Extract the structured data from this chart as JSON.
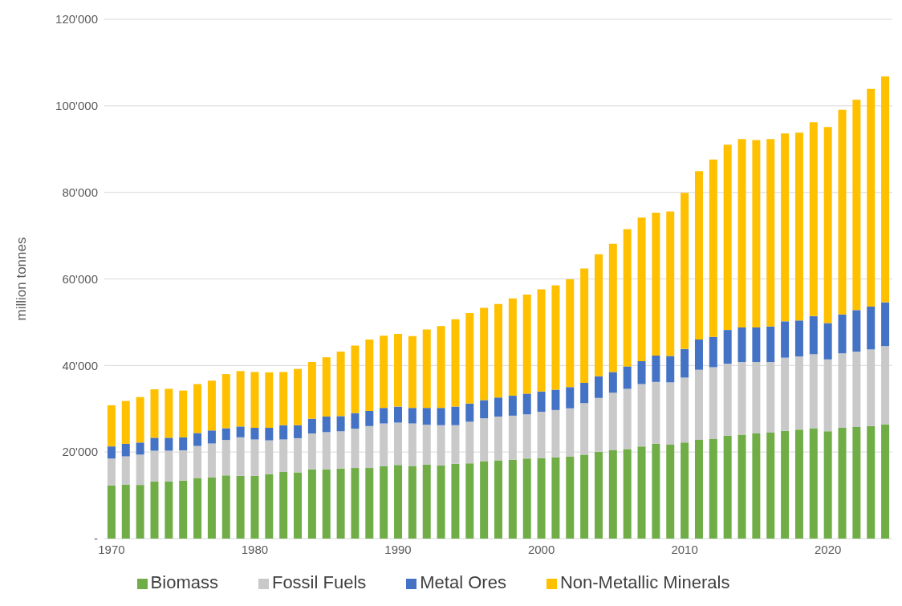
{
  "chart_data": {
    "type": "bar",
    "stacked": true,
    "ylabel": "million tonnes",
    "categories": [
      "1970",
      null,
      null,
      null,
      null,
      null,
      null,
      null,
      null,
      null,
      "1980",
      null,
      null,
      null,
      null,
      null,
      null,
      null,
      null,
      null,
      "1990",
      null,
      null,
      null,
      null,
      null,
      null,
      null,
      null,
      null,
      "2000",
      null,
      null,
      null,
      null,
      null,
      null,
      null,
      null,
      null,
      "2010",
      null,
      null,
      null,
      null,
      null,
      null,
      null,
      null,
      null,
      "2020",
      null,
      null,
      null,
      null
    ],
    "series": [
      {
        "name": "Biomass",
        "color": "#70ad47",
        "values": [
          12300,
          12500,
          12400,
          13200,
          13200,
          13400,
          14000,
          14100,
          14600,
          14500,
          14500,
          14900,
          15400,
          15300,
          16000,
          16000,
          16200,
          16300,
          16300,
          16700,
          17000,
          16800,
          17100,
          16900,
          17300,
          17400,
          17900,
          18100,
          18200,
          18500,
          18600,
          18800,
          18900,
          19400,
          20100,
          20400,
          20700,
          21300,
          21900,
          21700,
          22200,
          22800,
          23000,
          23800,
          24000,
          24300,
          24500,
          24900,
          25200,
          25500,
          24800,
          25600,
          25800,
          26000,
          26400
        ]
      },
      {
        "name": "Fossil Fuels",
        "color": "#c9c9c9",
        "values": [
          6200,
          6500,
          7000,
          7100,
          7100,
          7000,
          7400,
          7900,
          8200,
          8900,
          8400,
          7800,
          7500,
          7900,
          8300,
          8600,
          8600,
          9100,
          9700,
          9900,
          9800,
          9800,
          9200,
          9300,
          8900,
          9600,
          9900,
          10100,
          10200,
          10200,
          10700,
          10900,
          11200,
          11900,
          12400,
          13300,
          13900,
          14400,
          14300,
          14400,
          15000,
          16200,
          16600,
          16600,
          16800,
          16500,
          16300,
          16900,
          16900,
          17100,
          16600,
          17200,
          17400,
          17700,
          18100
        ]
      },
      {
        "name": "Metal Ores",
        "color": "#4472c4",
        "values": [
          2800,
          2900,
          2800,
          3000,
          3000,
          3000,
          3000,
          3000,
          2700,
          2500,
          2700,
          2900,
          3300,
          3000,
          3400,
          3600,
          3500,
          3600,
          3500,
          3600,
          3700,
          3600,
          3900,
          4000,
          4300,
          4200,
          4200,
          4400,
          4600,
          4800,
          4700,
          4700,
          4900,
          4700,
          5000,
          4800,
          5200,
          5300,
          6100,
          6100,
          6600,
          7000,
          7000,
          7800,
          8000,
          8000,
          8200,
          8400,
          8300,
          8800,
          8400,
          9000,
          9600,
          9900,
          10100
        ]
      },
      {
        "name": "Non-Metallic Minerals",
        "color": "#ffc000",
        "values": [
          9500,
          9900,
          10500,
          11200,
          11300,
          10800,
          11300,
          11500,
          12500,
          12800,
          12900,
          12800,
          12300,
          13000,
          13100,
          13700,
          14900,
          15600,
          16500,
          16700,
          16800,
          16600,
          18100,
          18900,
          20200,
          20900,
          21300,
          21600,
          22500,
          22900,
          23600,
          24100,
          24900,
          26400,
          28200,
          29600,
          31700,
          33200,
          33000,
          33400,
          36100,
          38900,
          41000,
          42800,
          43500,
          43300,
          43300,
          43400,
          43400,
          44800,
          45300,
          47300,
          48600,
          50300,
          52200
        ]
      }
    ],
    "ylim": [
      0,
      120000
    ],
    "yticks": [
      {
        "value": 0,
        "label": "-"
      },
      {
        "value": 20000,
        "label": "20'000"
      },
      {
        "value": 40000,
        "label": "40'000"
      },
      {
        "value": 60000,
        "label": "60'000"
      },
      {
        "value": 80000,
        "label": "80'000"
      },
      {
        "value": 100000,
        "label": "100'000"
      },
      {
        "value": 120000,
        "label": "120'000"
      }
    ],
    "grid": "y",
    "legend": "bottom"
  }
}
